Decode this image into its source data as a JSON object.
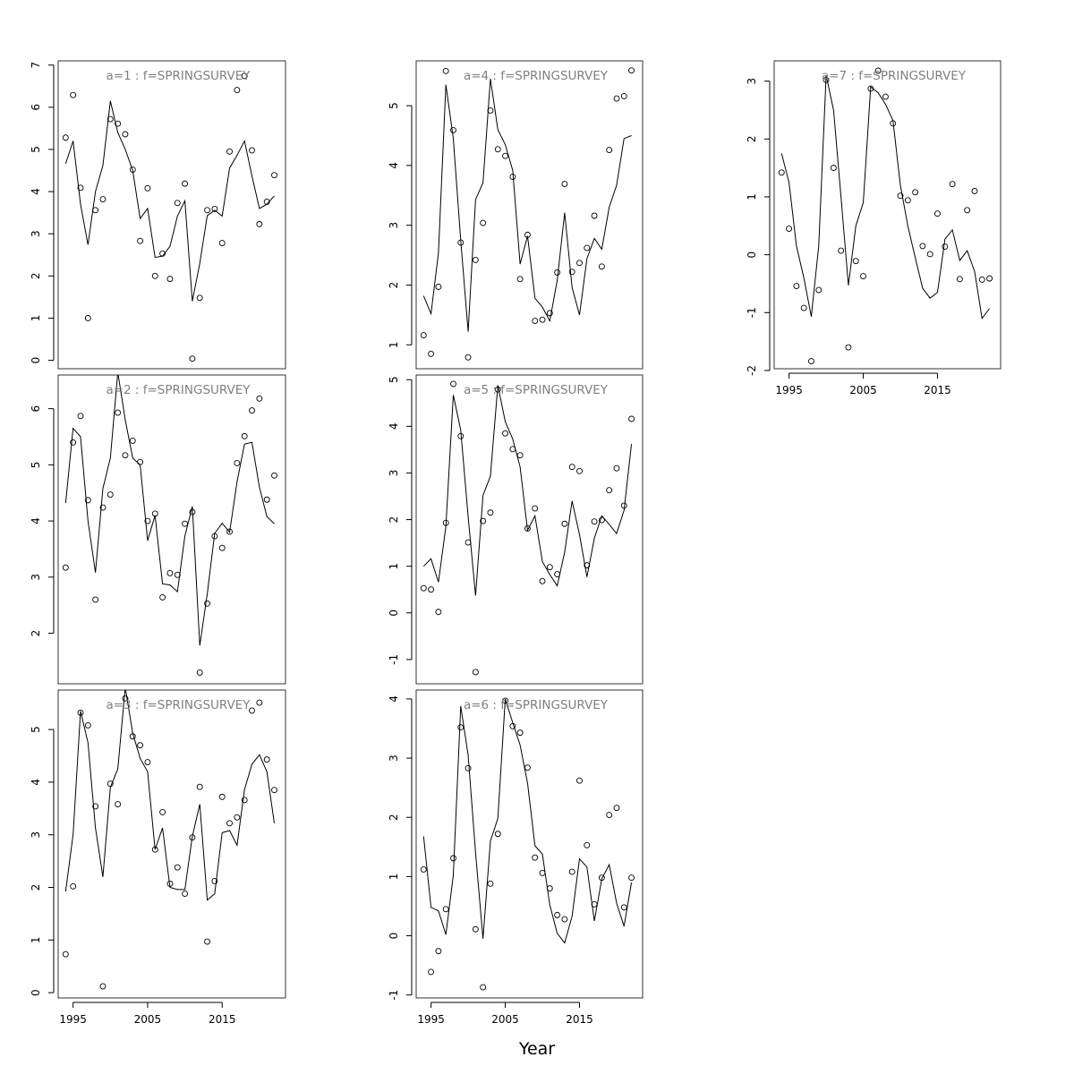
{
  "figure": {
    "xlabel": "Year"
  },
  "chart_data": [
    {
      "type": "line",
      "title": "a=1  :  f=SPRINGSURVEY",
      "xlim": [
        1993,
        2023.5
      ],
      "ylim": [
        -0.2,
        7.1
      ],
      "yticks": [
        0,
        1,
        2,
        3,
        4,
        5,
        6,
        7
      ],
      "xticks": [],
      "series": [
        {
          "role": "observed",
          "style": "points",
          "x": [
            1994,
            1995,
            1996,
            1997,
            1998,
            1999,
            2000,
            2001,
            2002,
            2003,
            2004,
            2005,
            2006,
            2007,
            2008,
            2009,
            2010,
            2011,
            2012,
            2013,
            2014,
            2015,
            2016,
            2017,
            2018,
            2019,
            2020,
            2021,
            2022
          ],
          "y": [
            5.28,
            6.29,
            4.09,
            1.0,
            3.56,
            3.82,
            5.72,
            5.61,
            5.36,
            4.52,
            2.83,
            4.08,
            2.0,
            2.53,
            1.93,
            3.73,
            4.19,
            0.04,
            1.48,
            3.56,
            3.59,
            2.78,
            4.95,
            6.41,
            6.74,
            4.98,
            3.23,
            3.76,
            4.39
          ]
        },
        {
          "role": "fitted",
          "style": "line",
          "x": [
            1994,
            1995,
            1996,
            1997,
            1998,
            1999,
            2000,
            2001,
            2002,
            2003,
            2004,
            2005,
            2006,
            2007,
            2008,
            2009,
            2010,
            2011,
            2012,
            2013,
            2014,
            2015,
            2016,
            2017,
            2018,
            2019,
            2020,
            2021,
            2022
          ],
          "y": [
            4.66,
            5.2,
            3.7,
            2.74,
            4.0,
            4.62,
            6.15,
            5.4,
            5.0,
            4.5,
            3.36,
            3.6,
            2.44,
            2.47,
            2.7,
            3.42,
            3.78,
            1.4,
            2.3,
            3.43,
            3.56,
            3.42,
            4.56,
            4.86,
            5.2,
            4.37,
            3.6,
            3.7,
            3.9
          ]
        }
      ]
    },
    {
      "type": "line",
      "title": "a=2  :  f=SPRINGSURVEY",
      "xlim": [
        1993,
        2023.5
      ],
      "ylim": [
        1.1,
        6.6
      ],
      "yticks": [
        2,
        3,
        4,
        5,
        6
      ],
      "xticks": [],
      "series": [
        {
          "role": "observed",
          "style": "points",
          "x": [
            1994,
            1995,
            1996,
            1997,
            1998,
            1999,
            2000,
            2001,
            2002,
            2003,
            2004,
            2005,
            2006,
            2007,
            2008,
            2009,
            2010,
            2011,
            2012,
            2013,
            2014,
            2015,
            2016,
            2017,
            2018,
            2019,
            2020,
            2021,
            2022
          ],
          "y": [
            3.17,
            5.4,
            5.87,
            4.37,
            2.6,
            4.24,
            4.47,
            5.93,
            5.17,
            5.43,
            5.05,
            4.0,
            4.13,
            2.64,
            3.07,
            3.04,
            3.95,
            4.16,
            1.3,
            2.53,
            3.73,
            3.52,
            3.81,
            5.03,
            5.51,
            5.97,
            6.18,
            4.38,
            4.81
          ]
        },
        {
          "role": "fitted",
          "style": "line",
          "x": [
            1994,
            1995,
            1996,
            1997,
            1998,
            1999,
            2000,
            2001,
            2002,
            2003,
            2004,
            2005,
            2006,
            2007,
            2008,
            2009,
            2010,
            2011,
            2012,
            2013,
            2014,
            2015,
            2016,
            2017,
            2018,
            2019,
            2020,
            2021,
            2022
          ],
          "y": [
            4.32,
            5.65,
            5.5,
            4.0,
            3.08,
            4.58,
            5.12,
            6.65,
            5.8,
            5.12,
            5.0,
            3.65,
            4.1,
            2.88,
            2.86,
            2.74,
            3.73,
            4.26,
            1.78,
            2.7,
            3.78,
            3.96,
            3.8,
            4.7,
            5.37,
            5.4,
            4.6,
            4.08,
            3.95
          ]
        }
      ]
    },
    {
      "type": "line",
      "title": "a=3  :  f=SPRINGSURVEY",
      "xlim": [
        1993,
        2023.5
      ],
      "ylim": [
        -0.1,
        5.75
      ],
      "yticks": [
        0,
        1,
        2,
        3,
        4,
        5
      ],
      "xticks": [
        1995,
        2005,
        2015
      ],
      "series": [
        {
          "role": "observed",
          "style": "points",
          "x": [
            1994,
            1995,
            1996,
            1997,
            1998,
            1999,
            2000,
            2001,
            2002,
            2003,
            2004,
            2005,
            2006,
            2007,
            2008,
            2009,
            2010,
            2011,
            2012,
            2013,
            2014,
            2015,
            2016,
            2017,
            2018,
            2019,
            2020,
            2021,
            2022
          ],
          "y": [
            0.73,
            2.02,
            5.32,
            5.08,
            3.54,
            0.12,
            3.97,
            3.58,
            5.59,
            4.87,
            4.7,
            4.38,
            2.72,
            3.43,
            2.07,
            2.38,
            1.88,
            2.95,
            3.91,
            0.97,
            2.12,
            3.72,
            3.22,
            3.33,
            3.66,
            5.36,
            5.51,
            4.43,
            3.85
          ]
        },
        {
          "role": "fitted",
          "style": "line",
          "x": [
            1994,
            1995,
            1996,
            1997,
            1998,
            1999,
            2000,
            2001,
            2002,
            2003,
            2004,
            2005,
            2006,
            2007,
            2008,
            2009,
            2010,
            2011,
            2012,
            2013,
            2014,
            2015,
            2016,
            2017,
            2018,
            2019,
            2020,
            2021,
            2022
          ],
          "y": [
            1.92,
            3.0,
            5.35,
            4.75,
            3.13,
            2.2,
            3.9,
            4.25,
            5.8,
            4.93,
            4.45,
            4.2,
            2.72,
            3.13,
            2.0,
            1.96,
            1.96,
            2.97,
            3.58,
            1.76,
            1.88,
            3.04,
            3.08,
            2.8,
            3.86,
            4.34,
            4.52,
            4.2,
            3.22
          ]
        }
      ]
    },
    {
      "type": "line",
      "title": "a=4  :  f=SPRINGSURVEY",
      "xlim": [
        1993,
        2023.5
      ],
      "ylim": [
        0.6,
        5.75
      ],
      "yticks": [
        1,
        2,
        3,
        4,
        5
      ],
      "xticks": [],
      "series": [
        {
          "role": "observed",
          "style": "points",
          "x": [
            1994,
            1995,
            1996,
            1997,
            1998,
            1999,
            2000,
            2001,
            2002,
            2003,
            2004,
            2005,
            2006,
            2007,
            2008,
            2009,
            2010,
            2011,
            2012,
            2013,
            2014,
            2015,
            2016,
            2017,
            2018,
            2019,
            2020,
            2021,
            2022
          ],
          "y": [
            1.16,
            0.85,
            1.97,
            5.58,
            4.59,
            2.71,
            0.79,
            2.42,
            3.04,
            4.92,
            4.27,
            4.16,
            3.81,
            2.1,
            2.84,
            1.4,
            1.42,
            1.53,
            2.21,
            3.69,
            2.22,
            2.37,
            2.62,
            3.16,
            2.31,
            4.26,
            5.12,
            5.16,
            5.59
          ]
        },
        {
          "role": "fitted",
          "style": "line",
          "x": [
            1994,
            1995,
            1996,
            1997,
            1998,
            1999,
            2000,
            2001,
            2002,
            2003,
            2004,
            2005,
            2006,
            2007,
            2008,
            2009,
            2010,
            2011,
            2012,
            2013,
            2014,
            2015,
            2016,
            2017,
            2018,
            2019,
            2020,
            2021,
            2022
          ],
          "y": [
            1.82,
            1.52,
            2.54,
            5.35,
            4.45,
            2.75,
            1.22,
            3.43,
            3.71,
            5.45,
            4.6,
            4.35,
            3.92,
            2.35,
            2.82,
            1.78,
            1.63,
            1.4,
            2.08,
            3.21,
            1.96,
            1.5,
            2.44,
            2.78,
            2.6,
            3.3,
            3.67,
            4.45,
            4.5
          ]
        }
      ]
    },
    {
      "type": "line",
      "title": "a=5  :  f=SPRINGSURVEY",
      "xlim": [
        1993,
        2023.5
      ],
      "ylim": [
        -1.52,
        5.1
      ],
      "yticks": [
        -1,
        0,
        1,
        2,
        3,
        4,
        5
      ],
      "xticks": [],
      "series": [
        {
          "role": "observed",
          "style": "points",
          "x": [
            1994,
            1995,
            1996,
            1997,
            1998,
            1999,
            2000,
            2001,
            2002,
            2003,
            2004,
            2005,
            2006,
            2007,
            2008,
            2009,
            2010,
            2011,
            2012,
            2013,
            2014,
            2015,
            2016,
            2017,
            2018,
            2019,
            2020,
            2021,
            2022
          ],
          "y": [
            0.53,
            0.5,
            0.02,
            1.93,
            4.91,
            3.79,
            1.51,
            -1.27,
            1.97,
            2.15,
            4.79,
            3.85,
            3.51,
            3.38,
            1.81,
            2.24,
            0.68,
            0.98,
            0.83,
            1.91,
            3.13,
            3.04,
            1.02,
            1.96,
            1.99,
            2.63,
            3.1,
            2.3,
            4.16
          ]
        },
        {
          "role": "fitted",
          "style": "line",
          "x": [
            1994,
            1995,
            1996,
            1997,
            1998,
            1999,
            2000,
            2001,
            2002,
            2003,
            2004,
            2005,
            2006,
            2007,
            2008,
            2009,
            2010,
            2011,
            2012,
            2013,
            2014,
            2015,
            2016,
            2017,
            2018,
            2019,
            2020,
            2021,
            2022
          ],
          "y": [
            1.0,
            1.16,
            0.66,
            1.85,
            4.67,
            3.92,
            2.06,
            0.37,
            2.52,
            2.93,
            4.88,
            4.1,
            3.73,
            3.13,
            1.77,
            2.08,
            1.1,
            0.82,
            0.58,
            1.3,
            2.4,
            1.68,
            0.77,
            1.6,
            2.08,
            1.9,
            1.7,
            2.2,
            3.62
          ]
        }
      ]
    },
    {
      "type": "line",
      "title": "a=6  :  f=SPRINGSURVEY",
      "xlim": [
        1993,
        2023.5
      ],
      "ylim": [
        -1.05,
        4.15
      ],
      "yticks": [
        -1,
        0,
        1,
        2,
        3,
        4
      ],
      "xticks": [
        1995,
        2005,
        2015
      ],
      "series": [
        {
          "role": "observed",
          "style": "points",
          "x": [
            1994,
            1995,
            1996,
            1997,
            1998,
            1999,
            2000,
            2001,
            2002,
            2003,
            2004,
            2005,
            2006,
            2007,
            2008,
            2009,
            2010,
            2011,
            2012,
            2013,
            2014,
            2015,
            2016,
            2017,
            2018,
            2019,
            2020,
            2021,
            2022
          ],
          "y": [
            1.12,
            -0.61,
            -0.26,
            0.45,
            1.31,
            3.52,
            2.83,
            0.11,
            -0.87,
            0.88,
            1.72,
            3.97,
            3.54,
            3.43,
            2.84,
            1.32,
            1.06,
            0.8,
            0.35,
            0.28,
            1.08,
            2.62,
            1.53,
            0.53,
            0.98,
            2.04,
            2.16,
            0.48,
            0.98
          ]
        },
        {
          "role": "fitted",
          "style": "line",
          "x": [
            1994,
            1995,
            1996,
            1997,
            1998,
            1999,
            2000,
            2001,
            2002,
            2003,
            2004,
            2005,
            2006,
            2007,
            2008,
            2009,
            2010,
            2011,
            2012,
            2013,
            2014,
            2015,
            2016,
            2017,
            2018,
            2019,
            2020,
            2021,
            2022
          ],
          "y": [
            1.68,
            0.48,
            0.42,
            0.02,
            1.02,
            3.88,
            3.05,
            1.4,
            -0.05,
            1.6,
            1.98,
            4.0,
            3.6,
            3.22,
            2.58,
            1.52,
            1.38,
            0.52,
            0.04,
            -0.12,
            0.33,
            1.3,
            1.16,
            0.25,
            0.96,
            1.2,
            0.55,
            0.16,
            0.9
          ]
        }
      ]
    },
    {
      "type": "line",
      "title": "a=7  :  f=SPRINGSURVEY",
      "xlim": [
        1993,
        2023.5
      ],
      "ylim": [
        -1.97,
        3.35
      ],
      "yticks": [
        -2,
        -1,
        0,
        1,
        2,
        3
      ],
      "xticks": [
        1995,
        2005,
        2015
      ],
      "series": [
        {
          "role": "observed",
          "style": "points",
          "x": [
            1994,
            1995,
            1996,
            1997,
            1998,
            1999,
            2000,
            2001,
            2002,
            2003,
            2004,
            2005,
            2006,
            2007,
            2008,
            2009,
            2010,
            2011,
            2012,
            2013,
            2014,
            2015,
            2016,
            2017,
            2018,
            2019,
            2020,
            2021,
            2022
          ],
          "y": [
            1.42,
            0.45,
            -0.54,
            -0.92,
            -1.84,
            -0.61,
            3.02,
            1.5,
            0.07,
            -1.6,
            -0.11,
            -0.37,
            2.87,
            3.18,
            2.73,
            2.27,
            1.02,
            0.94,
            1.08,
            0.15,
            0.01,
            0.71,
            0.14,
            1.22,
            -0.42,
            0.77,
            1.1,
            -0.43,
            -0.41
          ]
        },
        {
          "role": "fitted",
          "style": "line",
          "x": [
            1994,
            1995,
            1996,
            1997,
            1998,
            1999,
            2000,
            2001,
            2002,
            2003,
            2004,
            2005,
            2006,
            2007,
            2008,
            2009,
            2010,
            2011,
            2012,
            2013,
            2014,
            2015,
            2016,
            2017,
            2018,
            2019,
            2020,
            2021,
            2022
          ],
          "y": [
            1.75,
            1.25,
            0.15,
            -0.4,
            -1.07,
            0.15,
            3.1,
            2.5,
            1.0,
            -0.53,
            0.5,
            0.9,
            2.9,
            2.8,
            2.6,
            2.32,
            1.2,
            0.5,
            -0.05,
            -0.58,
            -0.75,
            -0.65,
            0.27,
            0.43,
            -0.1,
            0.07,
            -0.29,
            -1.1,
            -0.93
          ]
        }
      ]
    }
  ]
}
